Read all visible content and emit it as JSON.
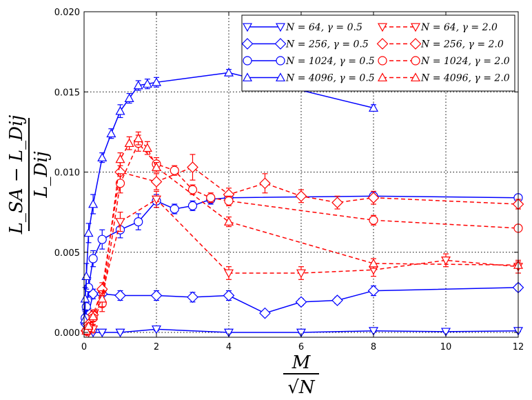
{
  "chart_data": {
    "type": "line",
    "title": "",
    "xlabel": "M / sqrt(N)",
    "ylabel": "(L_SA - L_Dij) / L_Dij",
    "xlabel_parts": {
      "numerator": "M",
      "denominator": "√N"
    },
    "ylabel_parts": {
      "numerator": "L_SA − L_Dij",
      "denominator": "L_Dij"
    },
    "xlim": [
      0,
      12
    ],
    "ylim": [
      -0.0003,
      0.02
    ],
    "xticks": [
      0,
      2,
      4,
      6,
      8,
      10,
      12
    ],
    "xtick_labels": [
      "0",
      "2",
      "4",
      "6",
      "8",
      "10",
      "12"
    ],
    "yticks": [
      0.0,
      0.005,
      0.01,
      0.015,
      0.02
    ],
    "ytick_labels": [
      "0.000",
      "0.005",
      "0.010",
      "0.015",
      "0.020"
    ],
    "grid": true,
    "legend_position": "top-right",
    "colors": {
      "gamma_0_5": "#0000ff",
      "gamma_2_0": "#ff0000"
    },
    "series": [
      {
        "name": "N = 64, γ = 0.5",
        "legend": "N = 64, γ = 0.5",
        "color": "#0000ff",
        "dash": "solid",
        "marker": "triangle-down",
        "x": [
          0.125,
          0.25,
          0.5,
          1.0,
          2.0,
          4.0,
          6.0,
          8.0,
          10.0,
          12.0
        ],
        "y": [
          0.0,
          0.0,
          0.0,
          0.0,
          0.0002,
          0.0,
          0.0,
          0.0001,
          5e-05,
          0.0001
        ],
        "err": [
          5e-05,
          5e-05,
          5e-05,
          5e-05,
          0.0001,
          5e-05,
          5e-05,
          5e-05,
          5e-05,
          5e-05
        ]
      },
      {
        "name": "N = 256, γ = 0.5",
        "legend": "N = 256, γ = 0.5",
        "color": "#0000ff",
        "dash": "solid",
        "marker": "diamond",
        "x": [
          0.0625,
          0.125,
          0.25,
          0.5,
          1.0,
          2.0,
          3.0,
          4.0,
          5.0,
          6.0,
          7.0,
          8.0,
          12.0
        ],
        "y": [
          0.0005,
          0.0012,
          0.0024,
          0.0024,
          0.0023,
          0.0023,
          0.0022,
          0.0023,
          0.0012,
          0.0019,
          0.002,
          0.0026,
          0.0028
        ],
        "err": [
          0.0003,
          0.0003,
          0.0003,
          0.0003,
          0.0003,
          0.0003,
          0.0003,
          0.0003,
          0.0001,
          0.0002,
          0.0002,
          0.0003,
          0.0002
        ]
      },
      {
        "name": "N = 1024, γ = 0.5",
        "legend": "N = 1024, γ = 0.5",
        "color": "#0000ff",
        "dash": "solid",
        "marker": "circle",
        "x": [
          0.03125,
          0.0625,
          0.125,
          0.25,
          0.5,
          1.0,
          1.5,
          2.0,
          2.5,
          3.0,
          3.5,
          4.0,
          8.0,
          12.0
        ],
        "y": [
          0.0009,
          0.0016,
          0.0028,
          0.0046,
          0.0058,
          0.0064,
          0.0069,
          0.0082,
          0.0077,
          0.0079,
          0.0083,
          0.0084,
          0.0085,
          0.0084
        ],
        "err": [
          0.0004,
          0.0006,
          0.0006,
          0.0005,
          0.0006,
          0.0005,
          0.0005,
          0.0004,
          0.0003,
          0.0003,
          0.0003,
          0.0003,
          0.0002,
          0.0002
        ]
      },
      {
        "name": "N = 4096, γ = 0.5",
        "legend": "N = 4096, γ = 0.5",
        "color": "#0000ff",
        "dash": "solid",
        "marker": "triangle-up",
        "x": [
          0.0156,
          0.0313,
          0.0625,
          0.125,
          0.25,
          0.5,
          0.75,
          1.0,
          1.25,
          1.5,
          1.75,
          2.0,
          4.0,
          8.0
        ],
        "y": [
          0.0008,
          0.0021,
          0.0035,
          0.0062,
          0.008,
          0.0109,
          0.0124,
          0.0138,
          0.0146,
          0.0154,
          0.0155,
          0.0156,
          0.0162,
          0.014
        ],
        "err": [
          0.0006,
          0.0007,
          0.0008,
          0.0006,
          0.0006,
          0.0003,
          0.0003,
          0.0004,
          0.0003,
          0.0003,
          0.0003,
          0.0003,
          0.0002,
          0.0002
        ]
      },
      {
        "name": "N = 64, γ = 2.0",
        "legend": "N = 64, γ = 2.0",
        "color": "#ff0000",
        "dash": "dashed",
        "marker": "triangle-down",
        "x": [
          0.125,
          0.25,
          0.5,
          1.0,
          2.0,
          4.0,
          6.0,
          8.0,
          10.0,
          12.0
        ],
        "y": [
          0.0,
          0.0002,
          0.0024,
          0.0069,
          0.0083,
          0.0037,
          0.0037,
          0.0039,
          0.0045,
          0.0041
        ],
        "err": [
          0.0001,
          0.0002,
          0.0004,
          0.0006,
          0.0005,
          0.0004,
          0.0004,
          0.0004,
          0.0004,
          0.0004
        ]
      },
      {
        "name": "N = 256, γ = 2.0",
        "legend": "N = 256, γ = 2.0",
        "color": "#ff0000",
        "dash": "dashed",
        "marker": "diamond",
        "x": [
          0.0625,
          0.125,
          0.25,
          0.5,
          1.0,
          2.0,
          3.0,
          4.0,
          5.0,
          6.0,
          7.0,
          8.0,
          12.0
        ],
        "y": [
          0.0001,
          0.0005,
          0.0011,
          0.0027,
          0.01,
          0.0094,
          0.0103,
          0.0086,
          0.0093,
          0.0085,
          0.0081,
          0.0084,
          0.008
        ],
        "err": [
          0.0001,
          0.0002,
          0.0003,
          0.0004,
          0.0006,
          0.0005,
          0.0008,
          0.0004,
          0.0006,
          0.0004,
          0.0004,
          0.0004,
          0.0003
        ]
      },
      {
        "name": "N = 1024, γ = 2.0",
        "legend": "N = 1024, γ = 2.0",
        "color": "#ff0000",
        "dash": "dashed",
        "marker": "circle",
        "x": [
          0.0625,
          0.125,
          0.25,
          0.5,
          1.0,
          1.5,
          2.0,
          2.5,
          3.0,
          3.5,
          4.0,
          8.0,
          12.0
        ],
        "y": [
          0.0001,
          0.0003,
          0.0009,
          0.0018,
          0.0093,
          0.0118,
          0.0105,
          0.0101,
          0.0089,
          0.0084,
          0.0082,
          0.007,
          0.0065
        ],
        "err": [
          0.0001,
          0.0002,
          0.0004,
          0.0005,
          0.0006,
          0.0005,
          0.0004,
          0.0003,
          0.0003,
          0.0003,
          0.0003,
          0.0003,
          0.0002
        ]
      },
      {
        "name": "N = 4096, γ = 2.0",
        "legend": "N = 4096, γ = 2.0",
        "color": "#ff0000",
        "dash": "dashed",
        "marker": "triangle-up",
        "x": [
          0.0625,
          0.125,
          0.25,
          0.5,
          1.0,
          1.25,
          1.5,
          1.75,
          2.0,
          4.0,
          8.0,
          12.0
        ],
        "y": [
          0.0001,
          0.0004,
          0.001,
          0.0021,
          0.0108,
          0.0118,
          0.0121,
          0.0115,
          0.0103,
          0.0069,
          0.0043,
          0.0042
        ],
        "err": [
          0.0001,
          0.0002,
          0.0003,
          0.0005,
          0.0004,
          0.0004,
          0.0004,
          0.0004,
          0.0003,
          0.0003,
          0.0003,
          0.0002
        ]
      }
    ]
  }
}
